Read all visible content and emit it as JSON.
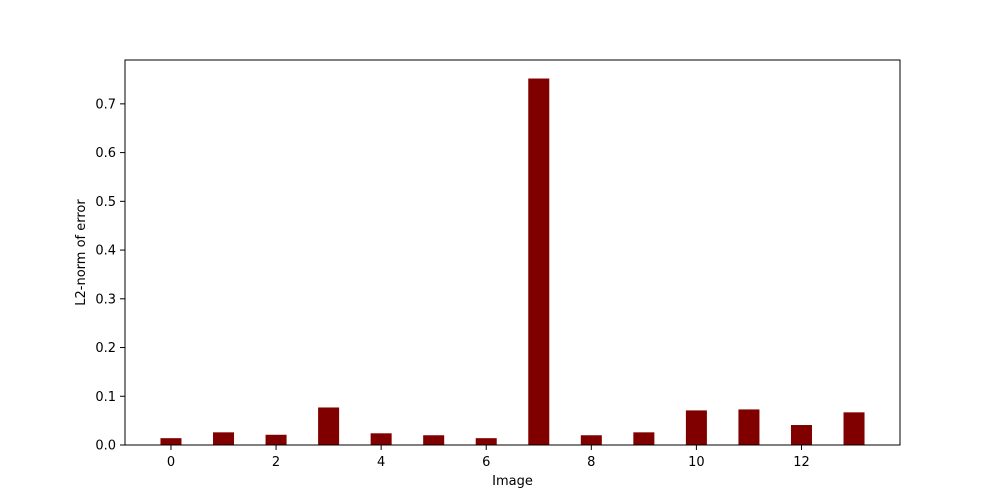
{
  "chart_data": {
    "type": "bar",
    "title": "",
    "xlabel": "Image",
    "ylabel": "L2-norm of error",
    "x": [
      0,
      1,
      2,
      3,
      4,
      5,
      6,
      7,
      8,
      9,
      10,
      11,
      12,
      13
    ],
    "values": [
      0.014,
      0.026,
      0.021,
      0.077,
      0.024,
      0.02,
      0.014,
      0.752,
      0.02,
      0.026,
      0.071,
      0.073,
      0.041,
      0.067
    ],
    "xlim": [
      -0.875,
      13.875
    ],
    "ylim": [
      0,
      0.79
    ],
    "xticks": [
      0,
      2,
      4,
      6,
      8,
      10,
      12
    ],
    "xtick_labels": [
      "0",
      "2",
      "4",
      "6",
      "8",
      "10",
      "12"
    ],
    "yticks": [
      0.0,
      0.1,
      0.2,
      0.3,
      0.4,
      0.5,
      0.6,
      0.7
    ],
    "ytick_labels": [
      "0.0",
      "0.1",
      "0.2",
      "0.3",
      "0.4",
      "0.5",
      "0.6",
      "0.7"
    ],
    "bar_width": 0.4,
    "bar_color": "#800000",
    "grid": false,
    "legend": "none"
  }
}
